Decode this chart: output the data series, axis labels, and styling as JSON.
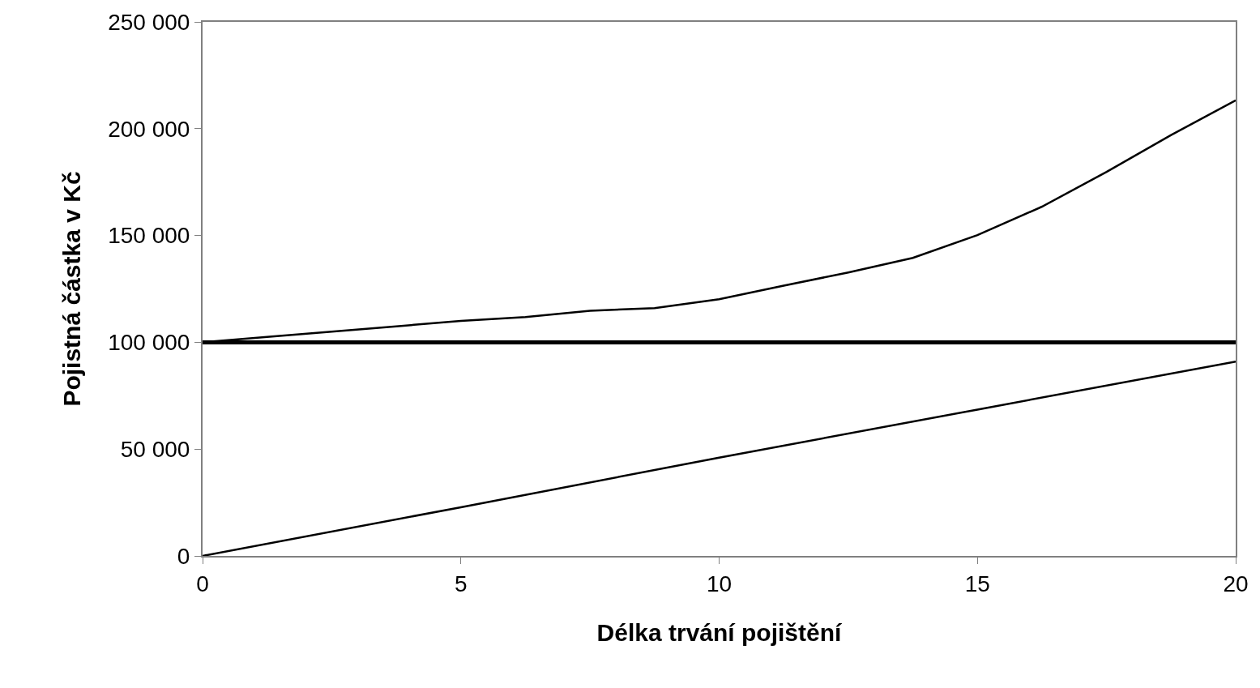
{
  "chart_data": {
    "type": "line",
    "xlabel": "Délka trvání pojištění",
    "ylabel": "Pojistná částka v Kč",
    "series": [
      {
        "color": "#000000",
        "x": [
          0,
          1.25,
          2.5,
          3.75,
          5,
          6.25,
          7.5,
          8.75,
          10,
          11.25,
          12.5,
          13.75,
          15,
          16.25,
          17.5,
          18.75,
          20
        ],
        "values": [
          100000,
          102500,
          105000,
          107500,
          110000,
          111800,
          114800,
          116000,
          120200,
          126500,
          132700,
          139500,
          150200,
          163500,
          179800,
          197000,
          213300
        ]
      },
      {
        "color": "#000000",
        "x": [
          0,
          5,
          10,
          15,
          20
        ],
        "values": [
          0,
          22800,
          46000,
          68500,
          91000
        ]
      }
    ],
    "ref_lines": [
      {
        "axis": "y",
        "value": 100000,
        "color": "#000000"
      }
    ],
    "xlim": [
      0,
      20
    ],
    "xticks": [
      0,
      5,
      10,
      15,
      20
    ],
    "ylim": [
      0,
      250000
    ],
    "yticks": [
      {
        "value": 0,
        "label": "0"
      },
      {
        "value": 50000,
        "label": "50 000"
      },
      {
        "value": 100000,
        "label": "100 000"
      },
      {
        "value": 150000,
        "label": "150 000"
      },
      {
        "value": 200000,
        "label": "200 000"
      },
      {
        "value": 250000,
        "label": "250 000"
      }
    ]
  }
}
